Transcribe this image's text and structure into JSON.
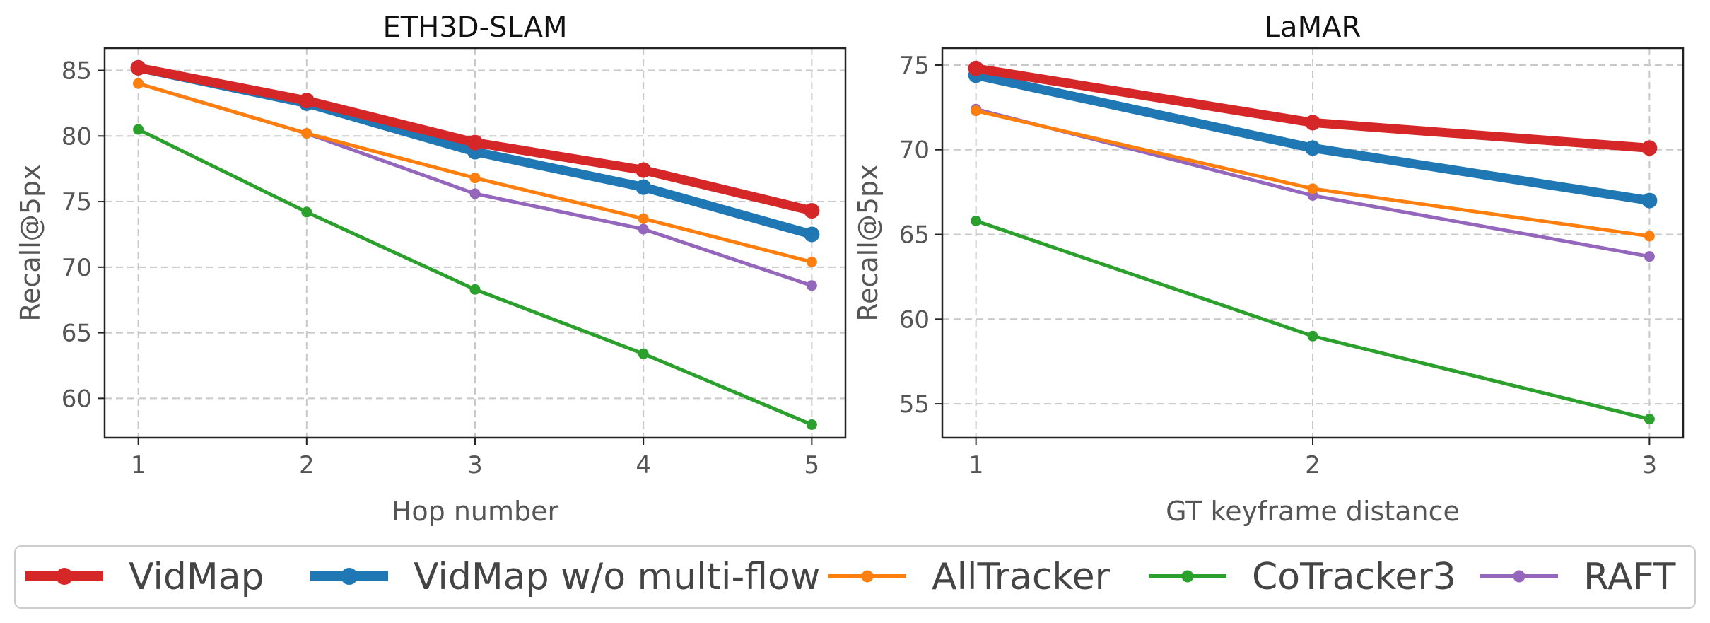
{
  "chart_data": [
    {
      "type": "line",
      "title": "ETH3D-SLAM",
      "xlabel": "Hop number",
      "ylabel": "Recall@5px",
      "x": [
        1,
        2,
        3,
        4,
        5
      ],
      "xticks": [
        "1",
        "2",
        "3",
        "4",
        "5"
      ],
      "xlim": [
        0.8,
        5.2
      ],
      "yticks": [
        "60",
        "65",
        "70",
        "75",
        "80",
        "85"
      ],
      "ylim": [
        57,
        86.7
      ],
      "grid": true,
      "series": [
        {
          "name": "VidMap",
          "values": [
            85.2,
            82.7,
            79.5,
            77.4,
            74.3
          ]
        },
        {
          "name": "VidMap w/o multi-flow",
          "values": [
            85.2,
            82.5,
            78.8,
            76.1,
            72.5
          ]
        },
        {
          "name": "AllTracker",
          "values": [
            84.0,
            80.2,
            76.8,
            73.7,
            70.4
          ]
        },
        {
          "name": "CoTracker3",
          "values": [
            80.5,
            74.2,
            68.3,
            63.4,
            58.0
          ]
        },
        {
          "name": "RAFT",
          "values": [
            84.0,
            80.2,
            75.6,
            72.9,
            68.6
          ]
        }
      ]
    },
    {
      "type": "line",
      "title": "LaMAR",
      "xlabel": "GT keyframe distance",
      "ylabel": "Recall@5px",
      "x": [
        1,
        2,
        3
      ],
      "xticks": [
        "1",
        "2",
        "3"
      ],
      "xlim": [
        0.9,
        3.1
      ],
      "yticks": [
        "55",
        "60",
        "65",
        "70",
        "75"
      ],
      "ylim": [
        53,
        76
      ],
      "grid": true,
      "series": [
        {
          "name": "VidMap",
          "values": [
            74.8,
            71.6,
            70.1
          ]
        },
        {
          "name": "VidMap w/o multi-flow",
          "values": [
            74.4,
            70.1,
            67.0
          ]
        },
        {
          "name": "AllTracker",
          "values": [
            72.3,
            67.7,
            64.9
          ]
        },
        {
          "name": "CoTracker3",
          "values": [
            65.8,
            59.0,
            54.1
          ]
        },
        {
          "name": "RAFT",
          "values": [
            72.4,
            67.3,
            63.7
          ]
        }
      ]
    }
  ],
  "styles": [
    {
      "name": "VidMap",
      "color": "#d62728",
      "marker": "circle",
      "emphasis": "thick"
    },
    {
      "name": "VidMap w/o multi-flow",
      "color": "#1f77b4",
      "marker": "circle",
      "emphasis": "thick"
    },
    {
      "name": "AllTracker",
      "color": "#ff7f0e",
      "marker": "circle",
      "emphasis": "thin"
    },
    {
      "name": "CoTracker3",
      "color": "#2ca02c",
      "marker": "circle",
      "emphasis": "thin"
    },
    {
      "name": "RAFT",
      "color": "#9467bd",
      "marker": "circle",
      "emphasis": "thin"
    }
  ],
  "legend": {
    "placement": "bottom",
    "items": [
      "VidMap",
      "VidMap w/o multi-flow",
      "AllTracker",
      "CoTracker3",
      "RAFT"
    ]
  }
}
